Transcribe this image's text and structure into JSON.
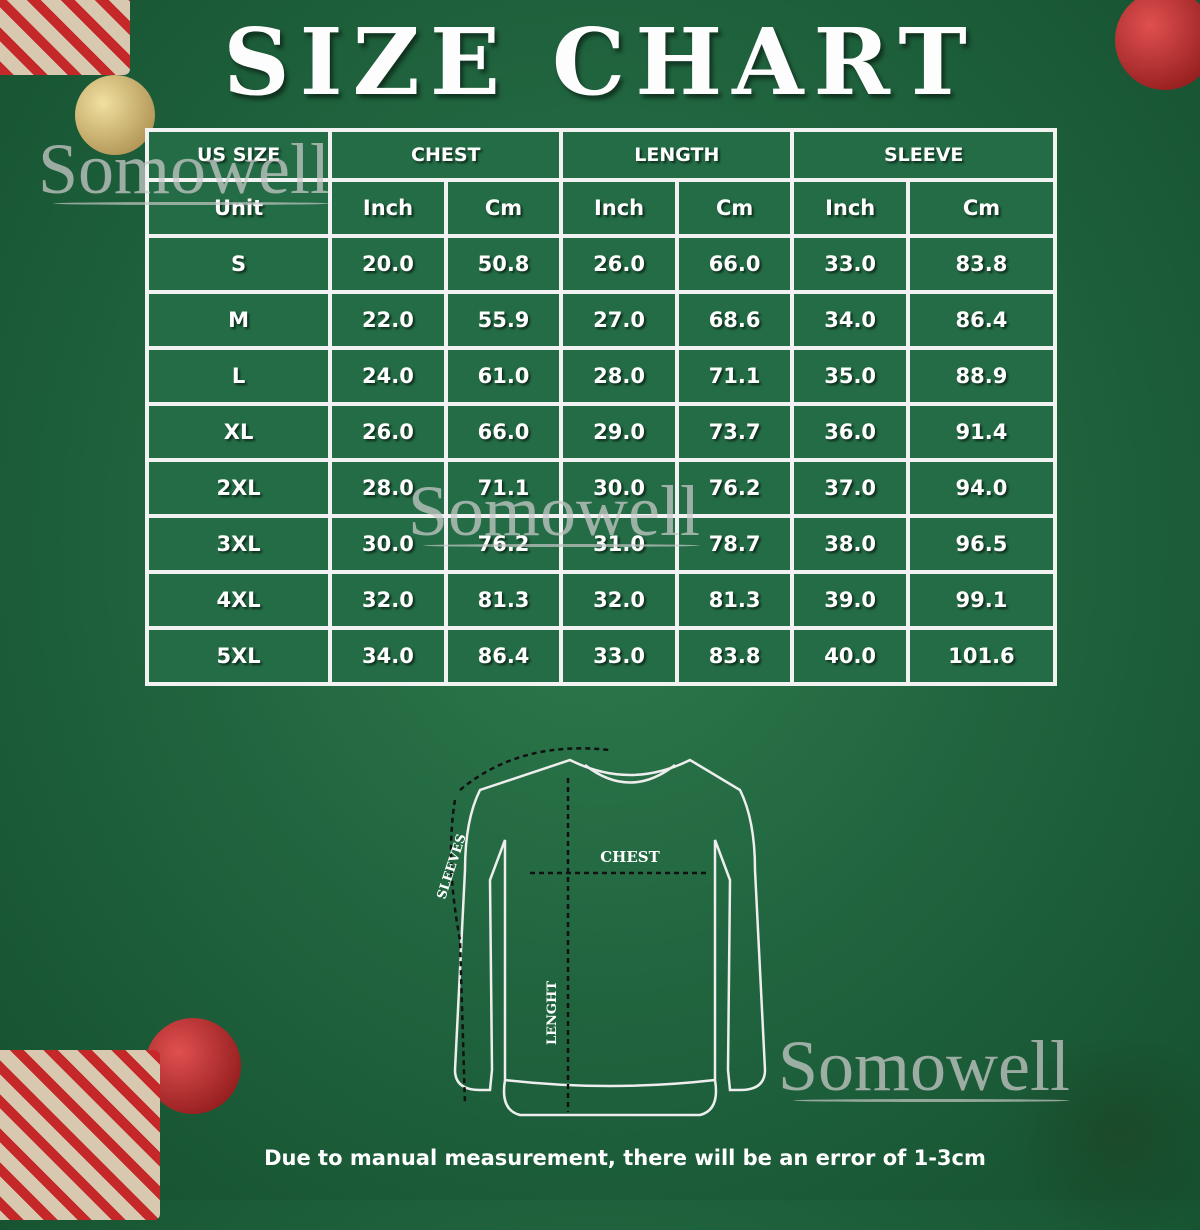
{
  "title": "SIZE CHART",
  "table": {
    "group_headers": [
      "US SIZE",
      "CHEST",
      "LENGTH",
      "SLEEVE"
    ],
    "unit_headers": [
      "Unit",
      "Inch",
      "Cm",
      "Inch",
      "Cm",
      "Inch",
      "Cm"
    ],
    "rows": [
      [
        "S",
        "20.0",
        "50.8",
        "26.0",
        "66.0",
        "33.0",
        "83.8"
      ],
      [
        "M",
        "22.0",
        "55.9",
        "27.0",
        "68.6",
        "34.0",
        "86.4"
      ],
      [
        "L",
        "24.0",
        "61.0",
        "28.0",
        "71.1",
        "35.0",
        "88.9"
      ],
      [
        "XL",
        "26.0",
        "66.0",
        "29.0",
        "73.7",
        "36.0",
        "91.4"
      ],
      [
        "2XL",
        "28.0",
        "71.1",
        "30.0",
        "76.2",
        "37.0",
        "94.0"
      ],
      [
        "3XL",
        "30.0",
        "76.2",
        "31.0",
        "78.7",
        "38.0",
        "96.5"
      ],
      [
        "4XL",
        "32.0",
        "81.3",
        "32.0",
        "81.3",
        "39.0",
        "99.1"
      ],
      [
        "5XL",
        "34.0",
        "86.4",
        "33.0",
        "83.8",
        "40.0",
        "101.6"
      ]
    ]
  },
  "diagram": {
    "chest": "CHEST",
    "sleeves": "SLEEVES",
    "length": "LENGHT"
  },
  "watermarks": [
    "Somowell",
    "Somowell",
    "Somowell"
  ],
  "note": "Due to manual measurement, there will be an error of 1-3cm",
  "colors": {
    "background": "#216640",
    "cell": "#236c45",
    "grid": "#f2f2f2"
  }
}
